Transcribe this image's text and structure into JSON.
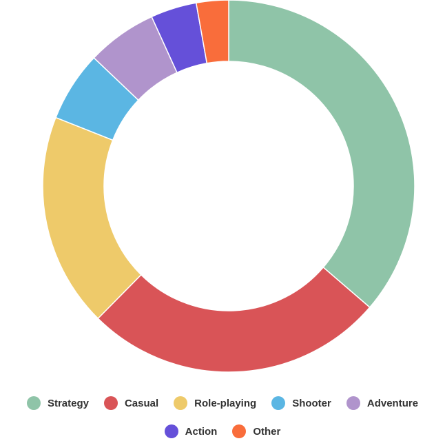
{
  "chart_data": {
    "type": "pie",
    "donut": true,
    "categories": [
      "Strategy",
      "Casual",
      "Role-playing",
      "Shooter",
      "Adventure",
      "Action",
      "Other"
    ],
    "values": [
      36.3,
      26.1,
      18.6,
      6.1,
      6.1,
      4.0,
      2.8
    ],
    "colors": [
      "#8fc4a8",
      "#d95457",
      "#eeca6a",
      "#5bb6e3",
      "#b094cc",
      "#6550d9",
      "#f96d3b"
    ],
    "title": "",
    "legend_position": "bottom"
  }
}
